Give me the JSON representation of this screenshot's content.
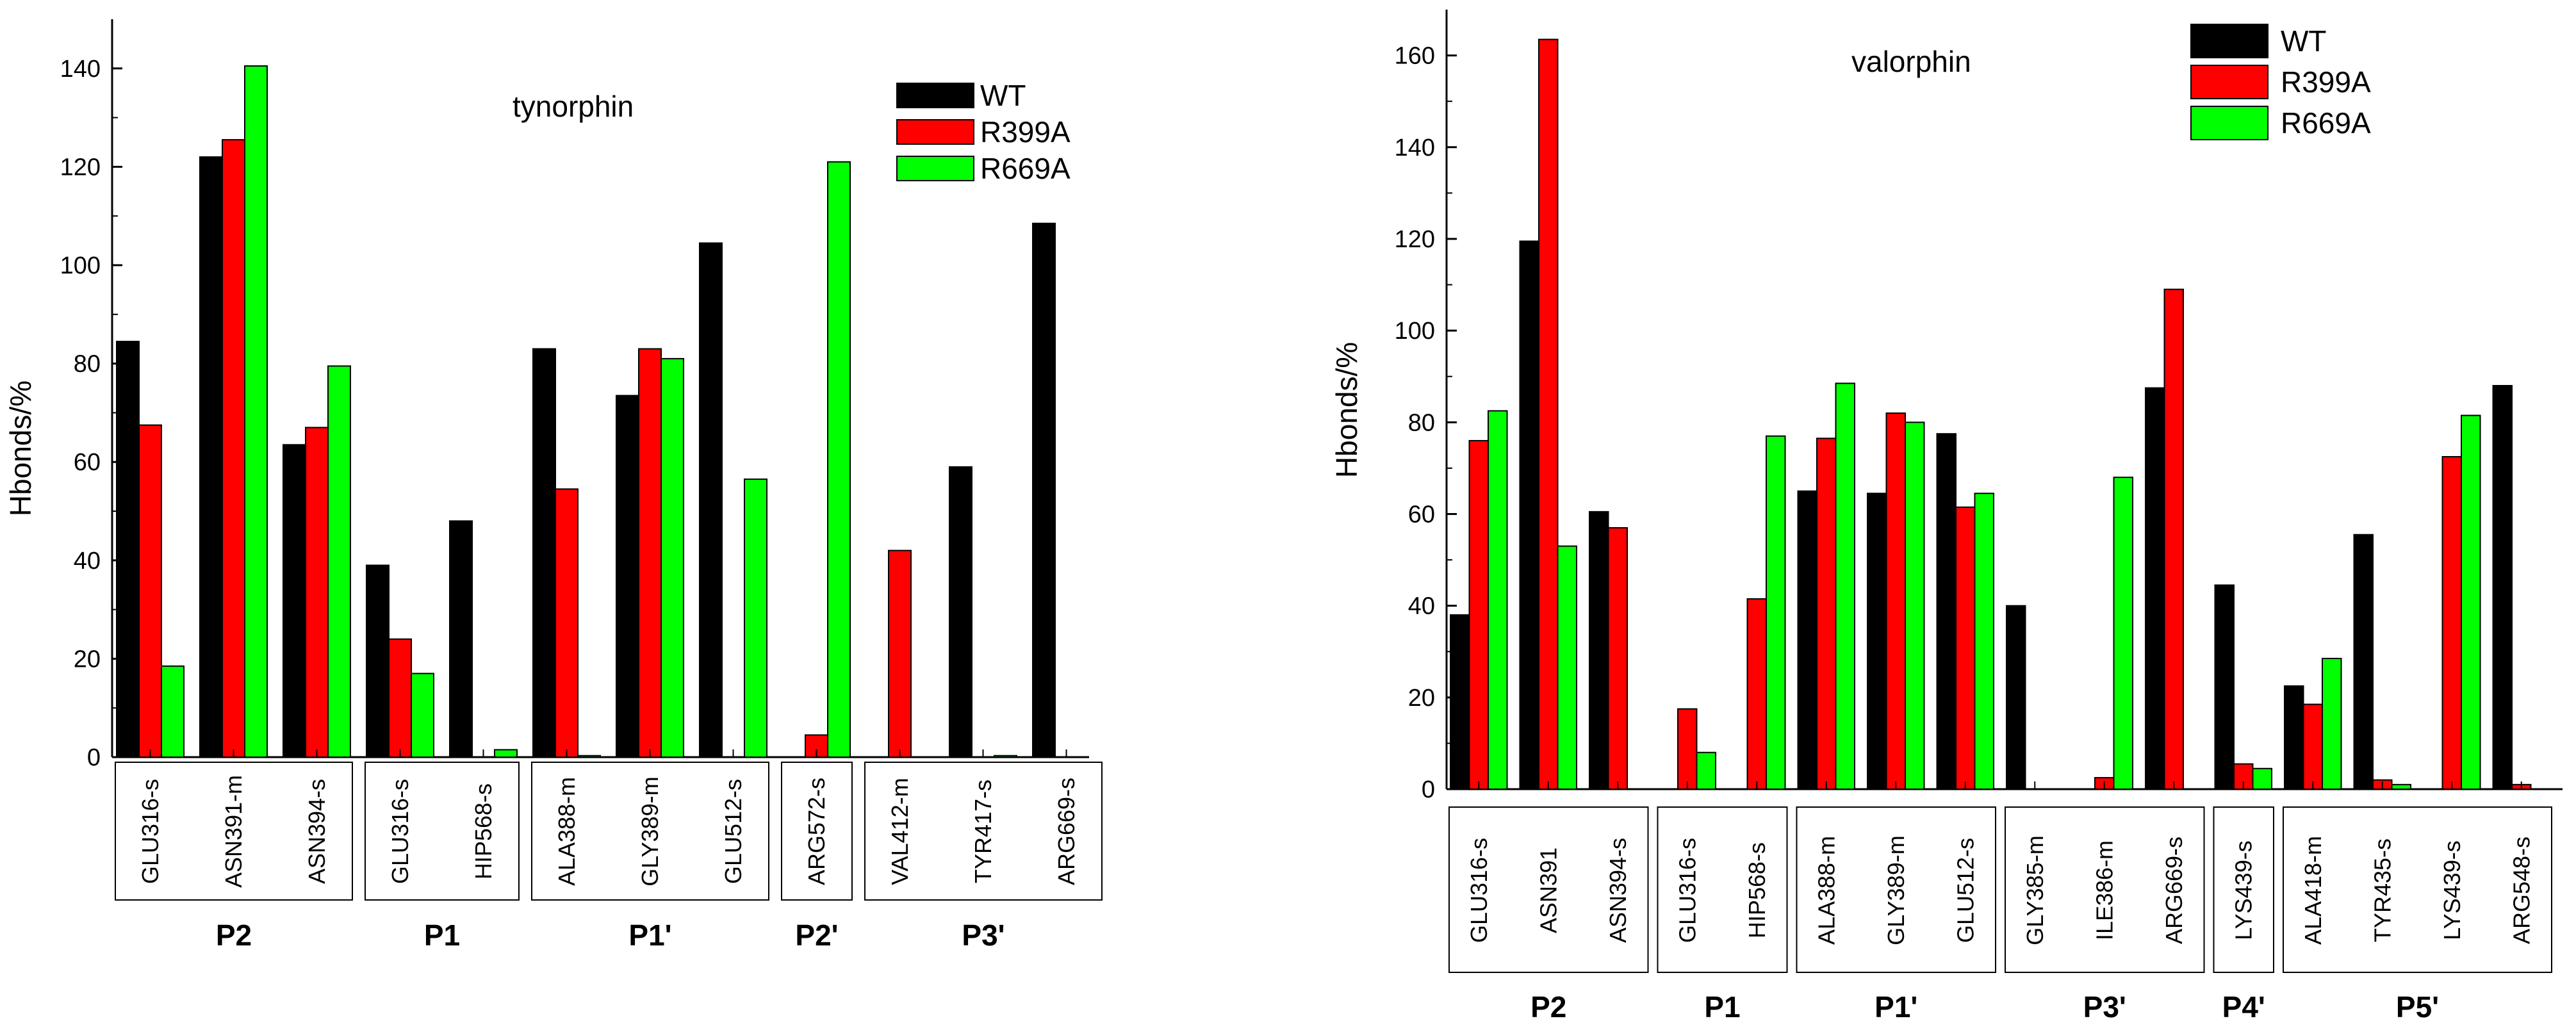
{
  "colors": {
    "WT": "#000000",
    "R399A": "#ff0000",
    "R669A": "#00ff00",
    "axis": "#000000",
    "background": "#ffffff"
  },
  "chart_data": [
    {
      "type": "bar",
      "title": "tynorphin",
      "xlabel": "",
      "ylabel": "Hbonds/%",
      "ylim": [
        0,
        150
      ],
      "yticks": [
        0,
        20,
        40,
        60,
        80,
        100,
        120,
        140
      ],
      "legend": [
        "WT",
        "R399A",
        "R669A"
      ],
      "legend_position": "top-right",
      "categories": [
        "GLU316-s",
        "ASN391-m",
        "ASN394-s",
        "GLU316-s",
        "HIP568-s",
        "ALA388-m",
        "GLY389-m",
        "GLU512-s",
        "ARG572-s",
        "VAL412-m",
        "TYR417-s",
        "ARG669-s"
      ],
      "groups": [
        {
          "label": "P2",
          "count": 3
        },
        {
          "label": "P1",
          "count": 2
        },
        {
          "label": "P1'",
          "count": 3
        },
        {
          "label": "P2'",
          "count": 1
        },
        {
          "label": "P3'",
          "count": 3
        }
      ],
      "series": [
        {
          "name": "WT",
          "values": [
            84.5,
            122,
            63.5,
            39,
            48,
            83,
            73.5,
            104.5,
            0,
            0,
            59,
            108.5
          ]
        },
        {
          "name": "R399A",
          "values": [
            67.5,
            125.5,
            67,
            24,
            0,
            54.5,
            83,
            0,
            4.5,
            42,
            0,
            0
          ]
        },
        {
          "name": "R669A",
          "values": [
            18.5,
            140.5,
            79.5,
            17,
            1.5,
            0.3,
            81,
            56.5,
            121,
            0,
            0.3,
            0
          ]
        }
      ]
    },
    {
      "type": "bar",
      "title": "valorphin",
      "xlabel": "",
      "ylabel": "Hbonds/%",
      "ylim": [
        0,
        170
      ],
      "yticks": [
        0,
        20,
        40,
        60,
        80,
        100,
        120,
        140,
        160
      ],
      "legend": [
        "WT",
        "R399A",
        "R669A"
      ],
      "legend_position": "top-right",
      "categories": [
        "GLU316-s",
        "ASN391",
        "ASN394-s",
        "GLU316-s",
        "HIP568-s",
        "ALA388-m",
        "GLY389-m",
        "GLU512-s",
        "GLY385-m",
        "ILE386-m",
        "ARG669-s",
        "LYS439-s",
        "ALA418-m",
        "TYR435-s",
        "LYS439-s",
        "ARG548-s"
      ],
      "groups": [
        {
          "label": "P2",
          "count": 3
        },
        {
          "label": "P1",
          "count": 2
        },
        {
          "label": "P1'",
          "count": 3
        },
        {
          "label": "P3'",
          "count": 3
        },
        {
          "label": "P4'",
          "count": 1
        },
        {
          "label": "P5'",
          "count": 4
        }
      ],
      "series": [
        {
          "name": "WT",
          "values": [
            38,
            119.5,
            60.5,
            0,
            0,
            65,
            64.5,
            77.5,
            40,
            0,
            87.5,
            44.5,
            22.5,
            55.5,
            0,
            88
          ]
        },
        {
          "name": "R399A",
          "values": [
            76,
            163.5,
            57,
            17.5,
            41.5,
            76.5,
            82,
            61.5,
            0,
            2.5,
            109,
            5.5,
            18.5,
            2,
            72.5,
            1
          ]
        },
        {
          "name": "R669A",
          "values": [
            82.5,
            53,
            0,
            8,
            77,
            88.5,
            80,
            64.5,
            0,
            68,
            0,
            4.5,
            28.5,
            1,
            81.5,
            0
          ]
        }
      ]
    }
  ]
}
